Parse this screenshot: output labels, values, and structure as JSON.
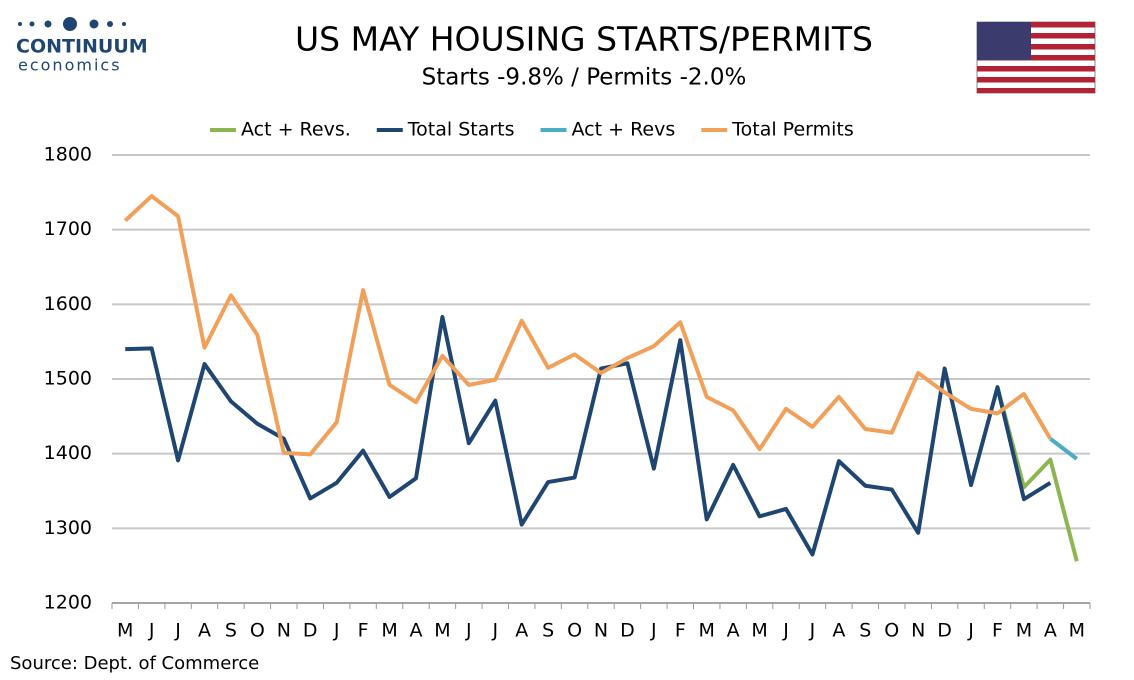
{
  "logo": {
    "name": "CONTINUUM",
    "tagline": "economics"
  },
  "source": "Source: Dept. of Commerce",
  "chart_data": {
    "type": "line",
    "title": "US MAY HOUSING STARTS/PERMITS",
    "subtitle": "Starts  -9.8% / Permits -2.0%",
    "categories": [
      "M",
      "J",
      "J",
      "A",
      "S",
      "O",
      "N",
      "D",
      "J",
      "F",
      "M",
      "A",
      "M",
      "J",
      "J",
      "A",
      "S",
      "O",
      "N",
      "D",
      "J",
      "F",
      "M",
      "A",
      "M",
      "J",
      "J",
      "A",
      "S",
      "O",
      "N",
      "D",
      "J",
      "F",
      "M",
      "A",
      "M"
    ],
    "series": [
      {
        "name": "Act + Revs.",
        "color": "#8db552",
        "values": [
          null,
          null,
          null,
          null,
          null,
          null,
          null,
          null,
          null,
          null,
          null,
          null,
          null,
          null,
          null,
          null,
          null,
          null,
          null,
          null,
          null,
          null,
          null,
          null,
          null,
          null,
          null,
          null,
          null,
          null,
          null,
          null,
          null,
          1489,
          1355,
          1392,
          1256
        ]
      },
      {
        "name": "Total Starts",
        "color": "#1f4672",
        "values": [
          1540,
          1541,
          1391,
          1520,
          1470,
          1440,
          1420,
          1340,
          1361,
          1404,
          1342,
          1367,
          1583,
          1414,
          1471,
          1305,
          1362,
          1368,
          1514,
          1521,
          1380,
          1552,
          1312,
          1385,
          1316,
          1326,
          1265,
          1390,
          1357,
          1352,
          1294,
          1514,
          1358,
          1489,
          1339,
          1361,
          null
        ]
      },
      {
        "name": "Act + Revs",
        "color": "#4bacc6",
        "values": [
          null,
          null,
          null,
          null,
          null,
          null,
          null,
          null,
          null,
          null,
          null,
          null,
          null,
          null,
          null,
          null,
          null,
          null,
          null,
          null,
          null,
          null,
          null,
          null,
          null,
          null,
          null,
          null,
          null,
          null,
          null,
          null,
          null,
          null,
          null,
          1420,
          1393
        ]
      },
      {
        "name": "Total Permits",
        "color": "#f1a05a",
        "values": [
          1712,
          1745,
          1718,
          1542,
          1612,
          1559,
          1401,
          1399,
          1442,
          1619,
          1492,
          1469,
          1531,
          1492,
          1499,
          1578,
          1515,
          1533,
          1508,
          1528,
          1544,
          1576,
          1476,
          1458,
          1406,
          1460,
          1436,
          1476,
          1433,
          1428,
          1508,
          1482,
          1460,
          1454,
          1480,
          1420,
          null
        ]
      }
    ],
    "ylim": [
      1200,
      1800
    ],
    "yticks": [
      1200,
      1300,
      1400,
      1500,
      1600,
      1700,
      1800
    ],
    "grid": true,
    "legend": "top"
  }
}
